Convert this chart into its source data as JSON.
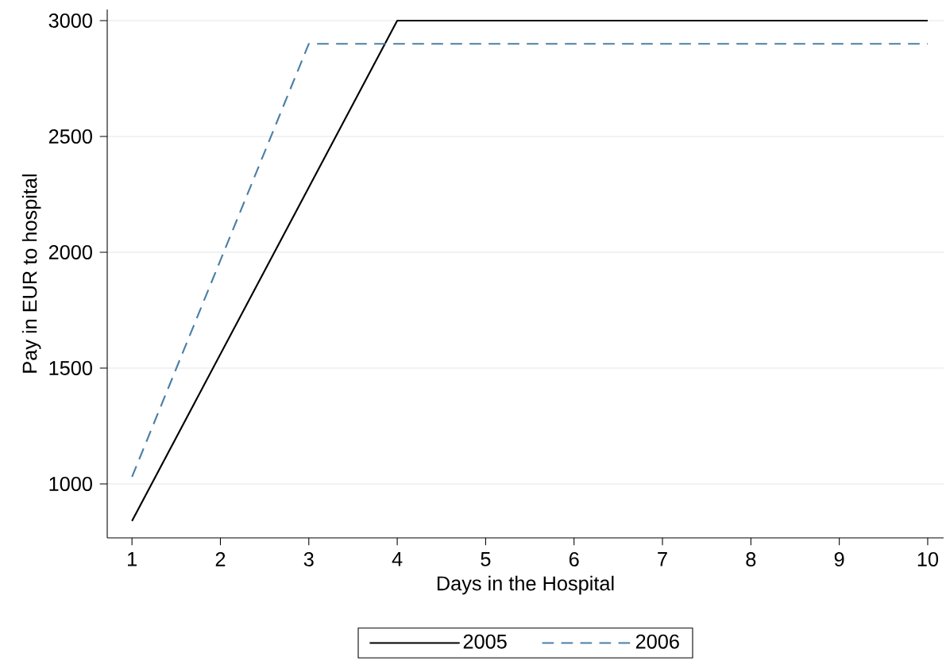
{
  "chart_data": {
    "type": "line",
    "xlabel": "Days in the Hospital",
    "ylabel": "Pay in EUR to hospital",
    "x": [
      1,
      2,
      3,
      4,
      5,
      6,
      7,
      8,
      9,
      10
    ],
    "series": [
      {
        "name": "2005",
        "color": "#000000",
        "line_style": "solid",
        "values": [
          840,
          1560,
          2280,
          3000,
          3000,
          3000,
          3000,
          3000,
          3000,
          3000
        ]
      },
      {
        "name": "2006",
        "color": "#4a7fa6",
        "line_style": "dashed",
        "values": [
          1030,
          1965,
          2900,
          2900,
          2900,
          2900,
          2900,
          2900,
          2900,
          2900
        ]
      }
    ],
    "xlim": [
      0.72,
      10.18
    ],
    "ylim": [
      767,
      3048
    ],
    "xticks": [
      1,
      2,
      3,
      4,
      5,
      6,
      7,
      8,
      9,
      10
    ],
    "yticks": [
      1000,
      1500,
      2000,
      2500,
      3000
    ],
    "grid": "y",
    "legend": "bottom",
    "marker": "none"
  }
}
